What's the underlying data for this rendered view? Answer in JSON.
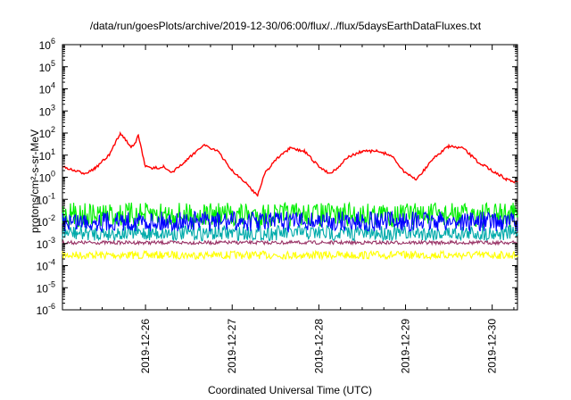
{
  "chart_data": {
    "type": "line",
    "title": "/data/run/goesPlots/archive/2019-12-30/06:00/flux/../flux/5daysEarthDataFluxes.txt",
    "xlabel": "Coordinated Universal Time (UTC)",
    "ylabel": "protons/cm²-s-sr-MeV",
    "yscale": "log",
    "ylim": [
      1e-06,
      1000000.0
    ],
    "xlim": [
      "2019-12-25 01:00",
      "2019-12-30 07:00"
    ],
    "y_ticks": [
      {
        "base": "10",
        "exp": "-6"
      },
      {
        "base": "10",
        "exp": "-5"
      },
      {
        "base": "10",
        "exp": "-4"
      },
      {
        "base": "10",
        "exp": "-3"
      },
      {
        "base": "10",
        "exp": "-2"
      },
      {
        "base": "10",
        "exp": "-1"
      },
      {
        "base": "10",
        "exp": "0"
      },
      {
        "base": "10",
        "exp": "1"
      },
      {
        "base": "10",
        "exp": "2"
      },
      {
        "base": "10",
        "exp": "3"
      },
      {
        "base": "10",
        "exp": "4"
      },
      {
        "base": "10",
        "exp": "5"
      },
      {
        "base": "10",
        "exp": "6"
      }
    ],
    "x_ticks": [
      "2019-12-26",
      "2019-12-27",
      "2019-12-28",
      "2019-12-29",
      "2019-12-30"
    ],
    "grid": false,
    "legend": "none",
    "series": [
      {
        "color": "#ff0000",
        "x": [
          "2019-12-25 01:00",
          "2019-12-25 04:00",
          "2019-12-25 07:00",
          "2019-12-25 10:00",
          "2019-12-25 14:00",
          "2019-12-25 17:00",
          "2019-12-25 20:00",
          "2019-12-25 21:00",
          "2019-12-25 22:00",
          "2019-12-26 00:00",
          "2019-12-26 02:00",
          "2019-12-26 05:00",
          "2019-12-26 07:00",
          "2019-12-26 11:00",
          "2019-12-26 16:00",
          "2019-12-26 20:00",
          "2019-12-27 00:00",
          "2019-12-27 04:00",
          "2019-12-27 07:00",
          "2019-12-27 09:00",
          "2019-12-27 12:00",
          "2019-12-27 16:00",
          "2019-12-27 20:00",
          "2019-12-28 00:00",
          "2019-12-28 03:00",
          "2019-12-28 05:00",
          "2019-12-28 08:00",
          "2019-12-28 12:00",
          "2019-12-28 16:00",
          "2019-12-28 20:00",
          "2019-12-29 00:00",
          "2019-12-29 03:00",
          "2019-12-29 05:00",
          "2019-12-29 08:00",
          "2019-12-29 12:00",
          "2019-12-29 16:00",
          "2019-12-29 20:00",
          "2019-12-30 00:00",
          "2019-12-30 04:00",
          "2019-12-30 07:00"
        ],
        "values": [
          3,
          2,
          1.5,
          2.5,
          10,
          100,
          25,
          30,
          80,
          3,
          2.5,
          3,
          1.5,
          5,
          30,
          15,
          2,
          0.5,
          0.15,
          1.5,
          6,
          20,
          15,
          3,
          1.5,
          2.5,
          8,
          15,
          15,
          10,
          1.5,
          0.8,
          2,
          8,
          25,
          20,
          5,
          2,
          0.8,
          0.6
        ]
      },
      {
        "color": "#00ee00",
        "x": [
          "2019-12-25 01:00",
          "2019-12-26 00:00",
          "2019-12-27 00:00",
          "2019-12-28 00:00",
          "2019-12-29 00:00",
          "2019-12-30 00:00",
          "2019-12-30 07:00"
        ],
        "values": [
          0.02,
          0.02,
          0.02,
          0.02,
          0.02,
          0.02,
          0.02
        ]
      },
      {
        "color": "#0000ff",
        "x": [
          "2019-12-25 01:00",
          "2019-12-26 00:00",
          "2019-12-27 00:00",
          "2019-12-28 00:00",
          "2019-12-29 00:00",
          "2019-12-30 00:00",
          "2019-12-30 07:00"
        ],
        "values": [
          0.01,
          0.01,
          0.01,
          0.01,
          0.01,
          0.01,
          0.01
        ]
      },
      {
        "color": "#00aaaa",
        "x": [
          "2019-12-25 01:00",
          "2019-12-26 00:00",
          "2019-12-27 00:00",
          "2019-12-28 00:00",
          "2019-12-29 00:00",
          "2019-12-30 00:00",
          "2019-12-30 07:00"
        ],
        "values": [
          0.003,
          0.003,
          0.003,
          0.003,
          0.003,
          0.003,
          0.003
        ]
      },
      {
        "color": "#ffff00",
        "x": [
          "2019-12-25 01:00",
          "2019-12-26 00:00",
          "2019-12-27 00:00",
          "2019-12-28 00:00",
          "2019-12-29 00:00",
          "2019-12-30 00:00",
          "2019-12-30 07:00"
        ],
        "values": [
          0.0003,
          0.0003,
          0.0003,
          0.0003,
          0.0003,
          0.0003,
          0.0003
        ]
      },
      {
        "color": "#993366",
        "x": [
          "2019-12-25 01:00",
          "2019-12-26 00:00",
          "2019-12-27 00:00",
          "2019-12-28 00:00",
          "2019-12-29 00:00",
          "2019-12-30 00:00",
          "2019-12-30 07:00"
        ],
        "values": [
          0.0011,
          0.0011,
          0.0011,
          0.0011,
          0.0011,
          0.0011,
          0.0011
        ]
      }
    ]
  }
}
